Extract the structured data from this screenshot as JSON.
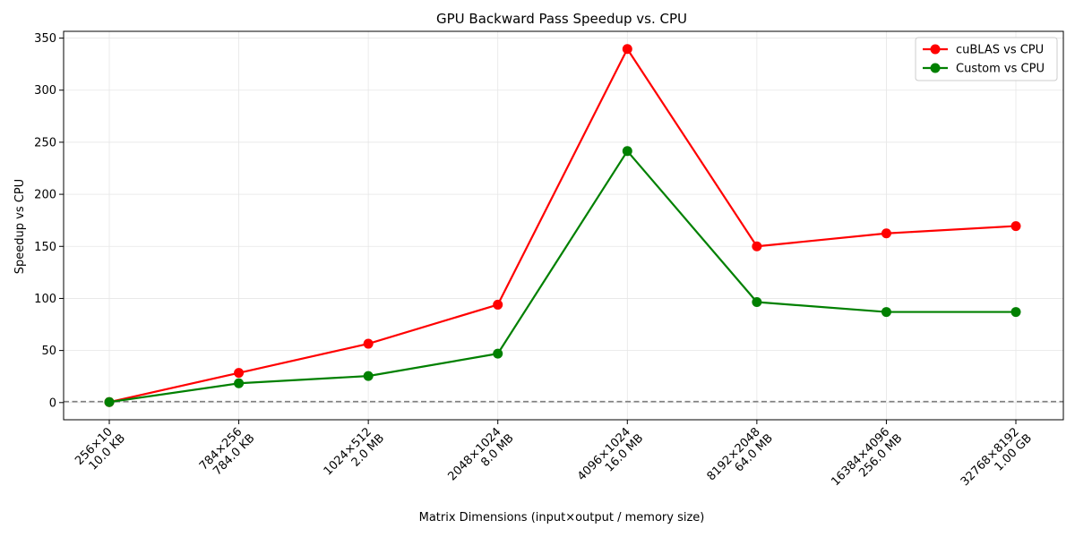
{
  "chart_data": {
    "type": "line",
    "title": "GPU Backward Pass Speedup vs. CPU",
    "xlabel": "Matrix Dimensions (input×output / memory size)",
    "ylabel": "Speedup vs CPU",
    "categories": [
      [
        "256×10",
        "10.0 KB"
      ],
      [
        "784×256",
        "784.0 KB"
      ],
      [
        "1024×512",
        "2.0 MB"
      ],
      [
        "2048×1024",
        "8.0 MB"
      ],
      [
        "4096×1024",
        "16.0 MB"
      ],
      [
        "8192×2048",
        "64.0 MB"
      ],
      [
        "16384×4096",
        "256.0 MB"
      ],
      [
        "32768×8192",
        "1.00 GB"
      ]
    ],
    "series": [
      {
        "name": "cuBLAS vs CPU",
        "color": "#ff0000",
        "values": [
          0.5,
          28.5,
          56.5,
          94,
          339.5,
          150,
          162.5,
          169.5
        ]
      },
      {
        "name": "Custom vs CPU",
        "color": "#008000",
        "values": [
          0.5,
          18.5,
          25.5,
          47,
          241.5,
          96.5,
          87,
          87
        ]
      }
    ],
    "reference_line": {
      "y": 1,
      "style": "dashed",
      "color": "#808080"
    },
    "ylim": [
      -16.5,
      356.5
    ],
    "yticks": [
      0,
      50,
      100,
      150,
      200,
      250,
      300,
      350
    ],
    "grid": true,
    "legend_position": "top-right"
  }
}
